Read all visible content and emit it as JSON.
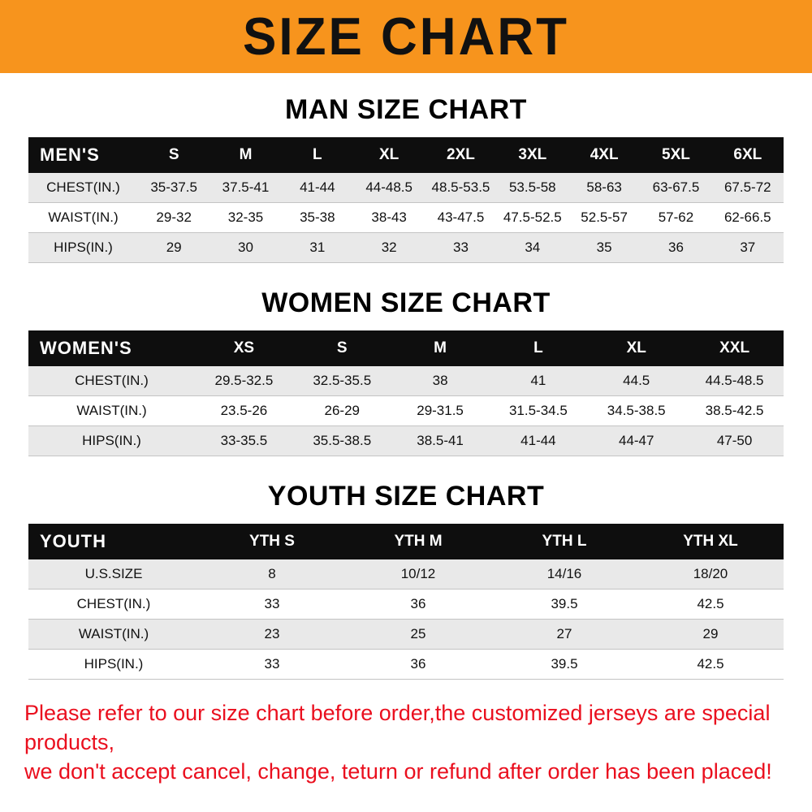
{
  "banner": {
    "title": "SIZE CHART",
    "bg_color": "#F7941D",
    "text_color": "#111111"
  },
  "chart_data": [
    {
      "type": "table",
      "title": "MAN SIZE CHART",
      "header_label": "MEN'S",
      "columns": [
        "S",
        "M",
        "L",
        "XL",
        "2XL",
        "3XL",
        "4XL",
        "5XL",
        "6XL"
      ],
      "rows": [
        {
          "label": "CHEST(IN.)",
          "values": [
            "35-37.5",
            "37.5-41",
            "41-44",
            "44-48.5",
            "48.5-53.5",
            "53.5-58",
            "58-63",
            "63-67.5",
            "67.5-72"
          ]
        },
        {
          "label": "WAIST(IN.)",
          "values": [
            "29-32",
            "32-35",
            "35-38",
            "38-43",
            "43-47.5",
            "47.5-52.5",
            "52.5-57",
            "57-62",
            "62-66.5"
          ]
        },
        {
          "label": "HIPS(IN.)",
          "values": [
            "29",
            "30",
            "31",
            "32",
            "33",
            "34",
            "35",
            "36",
            "37"
          ]
        }
      ]
    },
    {
      "type": "table",
      "title": "WOMEN SIZE CHART",
      "header_label": "WOMEN'S",
      "columns": [
        "XS",
        "S",
        "M",
        "L",
        "XL",
        "XXL"
      ],
      "rows": [
        {
          "label": "CHEST(IN.)",
          "values": [
            "29.5-32.5",
            "32.5-35.5",
            "38",
            "41",
            "44.5",
            "44.5-48.5"
          ]
        },
        {
          "label": "WAIST(IN.)",
          "values": [
            "23.5-26",
            "26-29",
            "29-31.5",
            "31.5-34.5",
            "34.5-38.5",
            "38.5-42.5"
          ]
        },
        {
          "label": "HIPS(IN.)",
          "values": [
            "33-35.5",
            "35.5-38.5",
            "38.5-41",
            "41-44",
            "44-47",
            "47-50"
          ]
        }
      ]
    },
    {
      "type": "table",
      "title": "YOUTH SIZE CHART",
      "header_label": "YOUTH",
      "columns": [
        "YTH S",
        "YTH M",
        "YTH L",
        "YTH XL"
      ],
      "rows": [
        {
          "label": "U.S.SIZE",
          "values": [
            "8",
            "10/12",
            "14/16",
            "18/20"
          ]
        },
        {
          "label": "CHEST(IN.)",
          "values": [
            "33",
            "36",
            "39.5",
            "42.5"
          ]
        },
        {
          "label": "WAIST(IN.)",
          "values": [
            "23",
            "25",
            "27",
            "29"
          ]
        },
        {
          "label": "HIPS(IN.)",
          "values": [
            "33",
            "36",
            "39.5",
            "42.5"
          ]
        }
      ]
    }
  ],
  "footer": {
    "lines": [
      "Please refer to our size chart before order,the customized jerseys are special products,",
      "we don't accept cancel, change, teturn or refund after order has been placed!"
    ],
    "text_color": "#ea0f1e"
  },
  "colors": {
    "banner_bg": "#F7941D",
    "table_header_bg": "#0e0e0e",
    "row_alt_bg": "#e9e9e9",
    "footer_red": "#ea0f1e"
  }
}
